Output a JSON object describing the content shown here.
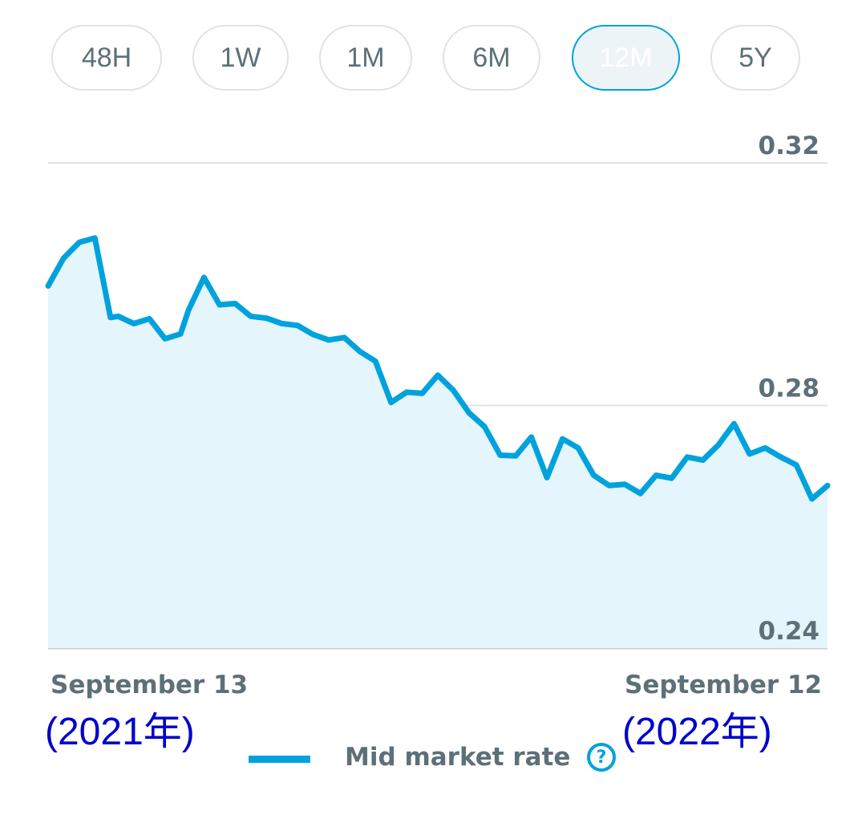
{
  "period_tabs": [
    {
      "label": "48H",
      "active": false
    },
    {
      "label": "1W",
      "active": false
    },
    {
      "label": "1M",
      "active": false
    },
    {
      "label": "6M",
      "active": false
    },
    {
      "label": "12M",
      "active": true
    },
    {
      "label": "5Y",
      "active": false
    }
  ],
  "colors": {
    "line": "#00a2dd",
    "fill": "#e4f5fb",
    "grid": "#dfe3e6",
    "text": "#5d7079",
    "annotation": "#0000cc"
  },
  "chart_data": {
    "type": "area",
    "y_ticks": [
      "0.32",
      "0.28",
      "0.24"
    ],
    "ylim": [
      0.24,
      0.32
    ],
    "x_labels": {
      "start": "September 13",
      "end": "September 12"
    },
    "annotations": {
      "start": "(2021年)",
      "end": "(2022年)"
    },
    "legend": {
      "label": "Mid market rate",
      "position": "bottom-center"
    },
    "grid": true,
    "series": [
      {
        "name": "Mid market rate",
        "x": [
          0,
          2,
          4,
          6,
          8,
          9,
          11,
          13,
          15,
          17,
          18,
          20,
          22,
          24,
          26,
          28,
          30,
          32,
          34,
          36,
          38,
          40,
          42,
          44,
          46,
          48,
          50,
          52,
          54,
          56,
          58,
          60,
          62,
          64,
          66,
          68,
          70,
          72,
          74,
          76,
          78,
          80,
          82,
          84,
          86,
          88,
          90,
          92,
          94,
          96,
          98,
          100
        ],
        "values": [
          0.2997,
          0.3043,
          0.3069,
          0.3076,
          0.2945,
          0.2947,
          0.2935,
          0.2943,
          0.291,
          0.2918,
          0.2957,
          0.3011,
          0.2966,
          0.2968,
          0.2947,
          0.2944,
          0.2935,
          0.2932,
          0.2917,
          0.2908,
          0.2912,
          0.2889,
          0.2873,
          0.2805,
          0.2822,
          0.282,
          0.285,
          0.2825,
          0.2788,
          0.2765,
          0.2718,
          0.2717,
          0.2748,
          0.2681,
          0.2745,
          0.273,
          0.2685,
          0.2668,
          0.267,
          0.2655,
          0.2685,
          0.268,
          0.2715,
          0.271,
          0.2735,
          0.277,
          0.272,
          0.273,
          0.2715,
          0.2702,
          0.2646,
          0.2668
        ]
      }
    ]
  }
}
